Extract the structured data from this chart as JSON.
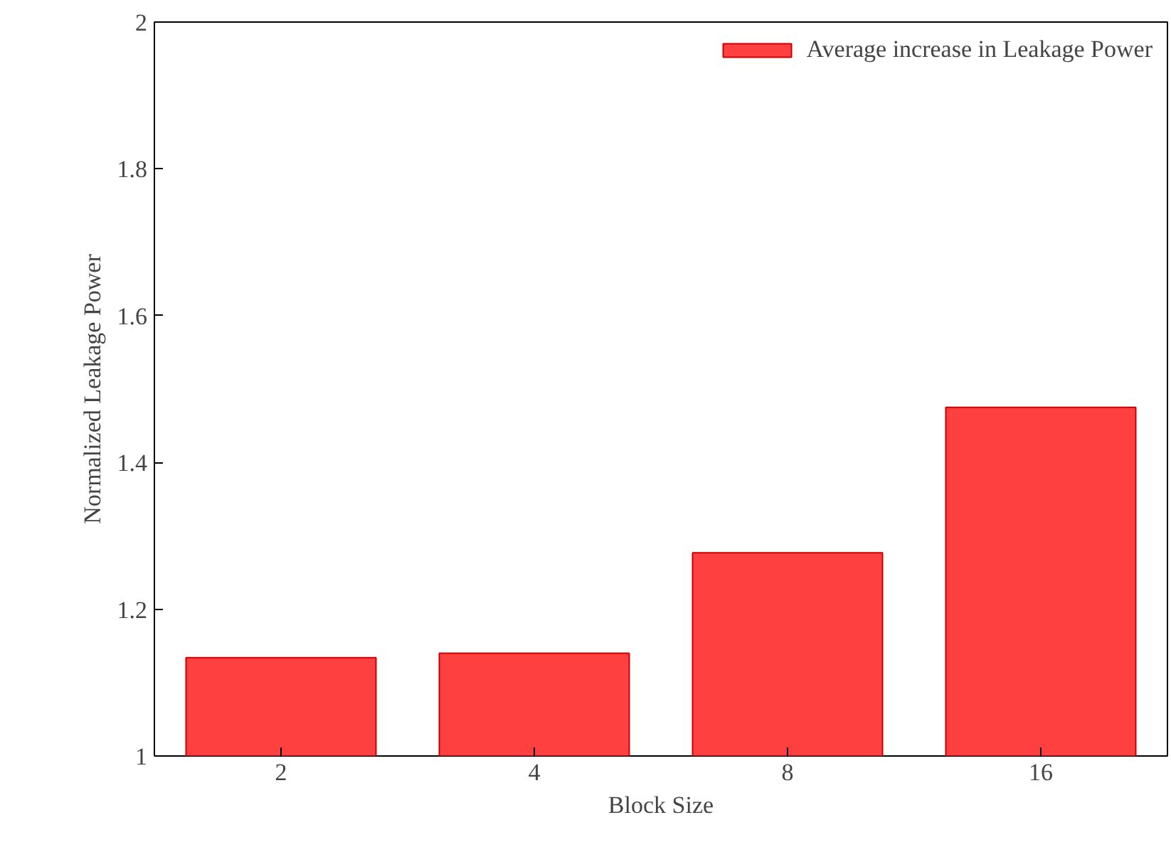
{
  "chart_data": {
    "type": "bar",
    "xlabel": "Block Size",
    "ylabel": "Normalized Leakage Power",
    "categories": [
      "2",
      "4",
      "8",
      "16"
    ],
    "series": [
      {
        "name": "Average increase in Leakage Power",
        "color": "#ff4040",
        "values": [
          1.134,
          1.14,
          1.277,
          1.475
        ]
      }
    ],
    "ylim": [
      1,
      2
    ],
    "yticks": [
      1,
      1.2,
      1.4,
      1.6,
      1.8,
      2
    ],
    "grid": false,
    "legend": "top right"
  }
}
